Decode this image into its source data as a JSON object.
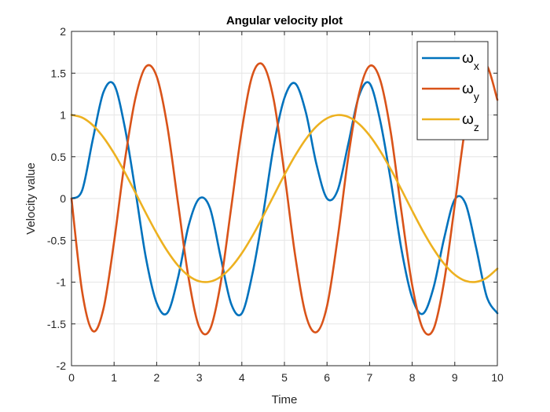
{
  "chart_data": {
    "type": "line",
    "title": "Angular velocity plot",
    "xlabel": "Time",
    "ylabel": "Velocity value",
    "xlim": [
      0,
      10
    ],
    "ylim": [
      -2,
      2
    ],
    "xticks": [
      0,
      1,
      2,
      3,
      4,
      5,
      6,
      7,
      8,
      9,
      10
    ],
    "yticks": [
      -2,
      -1.5,
      -1,
      -0.5,
      0,
      0.5,
      1,
      1.5,
      2
    ],
    "xtick_labels": [
      "0",
      "1",
      "2",
      "3",
      "4",
      "5",
      "6",
      "7",
      "8",
      "9",
      "10"
    ],
    "ytick_labels": [
      "-2",
      "-1.5",
      "-1",
      "-0.5",
      "0",
      "0.5",
      "1",
      "1.5",
      "2"
    ],
    "grid": true,
    "legend_position": "top-right",
    "x": [
      0,
      0.25,
      0.5,
      0.75,
      1,
      1.25,
      1.5,
      1.75,
      2,
      2.25,
      2.5,
      2.75,
      3,
      3.25,
      3.5,
      3.75,
      4,
      4.25,
      4.5,
      4.75,
      5,
      5.25,
      5.5,
      5.75,
      6,
      6.25,
      6.5,
      6.75,
      7,
      7.25,
      7.5,
      7.75,
      8,
      8.25,
      8.5,
      8.75,
      9,
      9.25,
      9.5,
      9.75,
      10
    ],
    "series": [
      {
        "name": "ω",
        "subscript": "x",
        "color": "#0072BD",
        "values": [
          0,
          0.098,
          0.706,
          1.272,
          1.362,
          0.858,
          0.095,
          -0.717,
          -1.25,
          -1.369,
          -0.949,
          -0.324,
          0,
          -0.112,
          -0.694,
          -1.261,
          -1.373,
          -0.898,
          -0.185,
          0.635,
          1.203,
          1.378,
          1.037,
          0.415,
          0.001,
          0.099,
          0.655,
          1.227,
          1.378,
          0.928,
          0.207,
          -0.614,
          -1.188,
          -1.379,
          -1.068,
          -0.476,
          -0.011,
          -0.058,
          -0.585,
          -1.173,
          -1.372
        ]
      },
      {
        "name": "ω",
        "subscript": "y",
        "color": "#D95319",
        "values": [
          0,
          -1.113,
          -1.585,
          -1.32,
          -0.517,
          0.443,
          1.199,
          1.58,
          1.462,
          0.866,
          -0.049,
          -0.952,
          -1.539,
          -1.568,
          -1.021,
          -0.108,
          0.822,
          1.478,
          1.597,
          1.178,
          0.3,
          -0.673,
          -1.389,
          -1.599,
          -1.287,
          -0.474,
          0.499,
          1.248,
          1.586,
          1.417,
          0.783,
          -0.164,
          -1.037,
          -1.558,
          -1.563,
          -0.992,
          -0.075,
          0.866,
          1.482,
          1.594,
          1.181
        ]
      },
      {
        "name": "ω",
        "subscript": "z",
        "color": "#EDB120",
        "values": [
          1,
          0.969,
          0.878,
          0.732,
          0.54,
          0.315,
          0.071,
          -0.178,
          -0.416,
          -0.628,
          -0.801,
          -0.924,
          -0.99,
          -0.994,
          -0.937,
          -0.821,
          -0.654,
          -0.446,
          -0.211,
          0.036,
          0.284,
          0.512,
          0.709,
          0.862,
          0.96,
          0.999,
          0.977,
          0.893,
          0.754,
          0.568,
          0.347,
          0.105,
          -0.146,
          -0.387,
          -0.602,
          -0.781,
          -0.911,
          -0.985,
          -0.997,
          -0.948,
          -0.839
        ]
      }
    ]
  }
}
